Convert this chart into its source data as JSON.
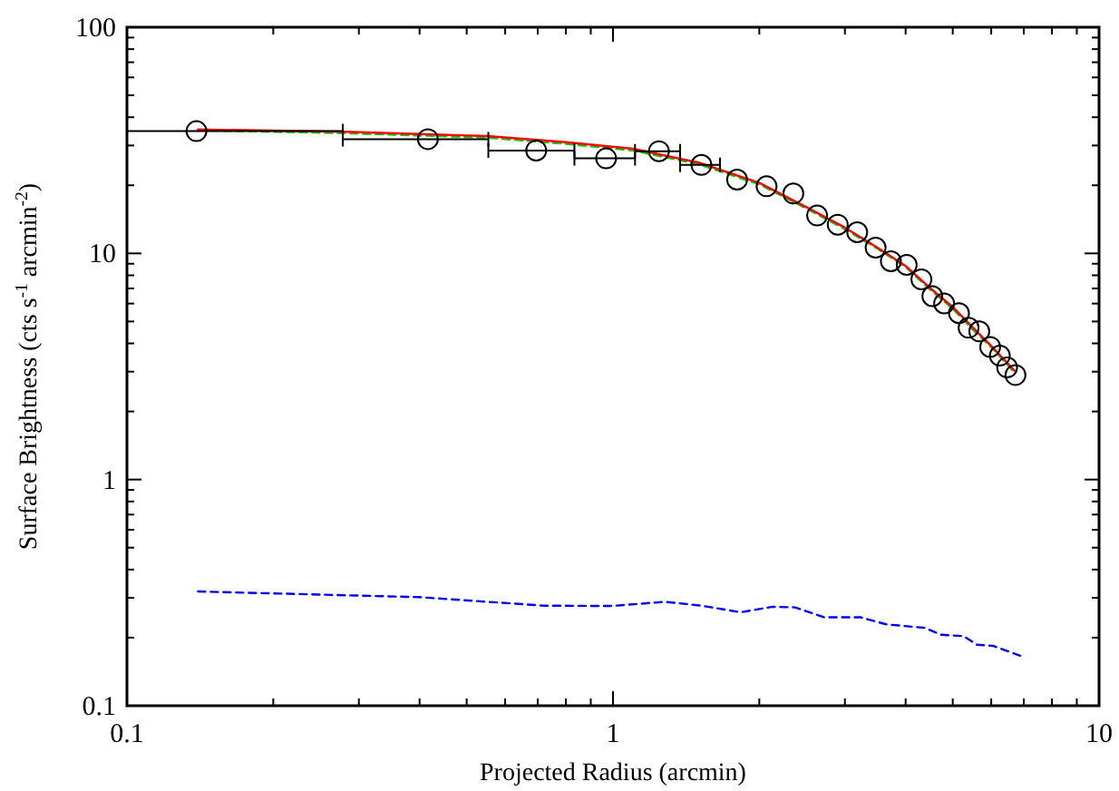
{
  "chart_data": {
    "type": "scatter",
    "xlabel": "Projected Radius (arcmin)",
    "ylabel": "Surface Brightness (cts s$^{-1}$ arcmin$^{-2}$)",
    "log": "xy",
    "grid": false,
    "xlim": [
      0.1,
      10
    ],
    "ylim": [
      0.1,
      100
    ],
    "xticks": [
      0.1,
      {
        "value": 0.2,
        "label": null
      },
      {
        "value": 0.3,
        "label": null
      },
      {
        "value": 0.4,
        "label": null
      },
      {
        "value": 0.5,
        "label": null
      },
      {
        "value": 0.6,
        "label": null
      },
      {
        "value": 0.7,
        "label": null
      },
      {
        "value": 0.8,
        "label": null
      },
      {
        "value": 0.9,
        "label": null
      },
      1,
      {
        "value": 2,
        "label": null
      },
      {
        "value": 3,
        "label": null
      },
      {
        "value": 4,
        "label": null
      },
      {
        "value": 5,
        "label": null
      },
      {
        "value": 6,
        "label": null
      },
      {
        "value": 7,
        "label": null
      },
      {
        "value": 8,
        "label": null
      },
      {
        "value": 9,
        "label": null
      },
      10
    ],
    "yticks": [
      0.1,
      {
        "value": 0.2,
        "label": null
      },
      {
        "value": 0.3,
        "label": null
      },
      {
        "value": 0.4,
        "label": null
      },
      {
        "value": 0.5,
        "label": null
      },
      {
        "value": 0.6,
        "label": null
      },
      {
        "value": 0.7,
        "label": null
      },
      {
        "value": 0.8,
        "label": null
      },
      {
        "value": 0.9,
        "label": null
      },
      1,
      {
        "value": 2,
        "label": null
      },
      {
        "value": 3,
        "label": null
      },
      {
        "value": 4,
        "label": null
      },
      {
        "value": 5,
        "label": null
      },
      {
        "value": 6,
        "label": null
      },
      {
        "value": 7,
        "label": null
      },
      {
        "value": 8,
        "label": null
      },
      {
        "value": 9,
        "label": null
      },
      10,
      {
        "value": 20,
        "label": null
      },
      {
        "value": 30,
        "label": null
      },
      {
        "value": 40,
        "label": null
      },
      {
        "value": 50,
        "label": null
      },
      {
        "value": 60,
        "label": null
      },
      {
        "value": 70,
        "label": null
      },
      {
        "value": 80,
        "label": null
      },
      {
        "value": 90,
        "label": null
      },
      100
    ],
    "series": [
      {
        "type": "line",
        "color": "#00cc00",
        "line_style": "dashed",
        "x": [
          0.14,
          0.28,
          0.55,
          0.8,
          1.1,
          1.5,
          2.0,
          2.5,
          3.0,
          3.5,
          4.0,
          4.5,
          5.0,
          5.5,
          6.0,
          6.73
        ],
        "values": [
          35.0,
          34.0,
          32.5,
          30.5,
          28.5,
          24.8,
          20.2,
          15.8,
          12.8,
          10.5,
          8.7,
          6.9,
          5.7,
          4.6,
          3.85,
          2.95
        ]
      },
      {
        "type": "line",
        "color": "#ff0000",
        "line_style": "solid",
        "x": [
          0.14,
          0.28,
          0.55,
          0.8,
          1.1,
          1.5,
          2.0,
          2.5,
          3.0,
          3.5,
          4.0,
          4.5,
          5.0,
          5.5,
          6.0,
          6.73
        ],
        "values": [
          35.3,
          34.5,
          33,
          31,
          29,
          25.2,
          20.5,
          16,
          13,
          10.6,
          8.8,
          7.0,
          5.8,
          4.7,
          3.9,
          3.0
        ]
      },
      {
        "type": "line",
        "color": "#0000ff",
        "line_style": "dashed",
        "x": [
          0.14,
          0.4,
          0.72,
          0.99,
          1.28,
          1.52,
          1.83,
          2.13,
          2.37,
          2.72,
          3.23,
          3.65,
          4.38,
          4.73,
          5.27,
          5.61,
          6.05,
          6.9
        ],
        "values": [
          0.32,
          0.302,
          0.277,
          0.276,
          0.288,
          0.277,
          0.259,
          0.274,
          0.272,
          0.246,
          0.246,
          0.229,
          0.221,
          0.206,
          0.203,
          0.186,
          0.184,
          0.166
        ]
      },
      {
        "color": "#000000",
        "marker": "circle",
        "x": [
          0.139,
          0.416,
          0.695,
          0.968,
          1.243,
          1.52,
          1.8,
          2.07,
          2.35,
          2.63,
          2.9,
          3.18,
          3.47,
          3.73,
          4.02,
          4.31,
          4.54,
          4.8,
          5.15,
          5.39,
          5.67,
          5.97,
          6.25,
          6.47,
          6.73
        ],
        "values": [
          34.7,
          32.0,
          28.5,
          26.3,
          28.3,
          24.6,
          21.2,
          19.8,
          18.4,
          14.7,
          13.4,
          12.4,
          10.6,
          9.24,
          8.9,
          7.68,
          6.47,
          6.01,
          5.44,
          4.69,
          4.52,
          3.86,
          3.53,
          3.13,
          2.9
        ],
        "xerrors": [
          [
            0.1,
            0.278
          ],
          [
            0.278,
            0.554
          ],
          [
            0.554,
            0.833
          ],
          [
            0.833,
            1.11
          ],
          [
            1.11,
            1.374
          ],
          [
            1.374,
            1.66
          ],
          null,
          null,
          null,
          null,
          null,
          null,
          null,
          null,
          null,
          null,
          null,
          null,
          null,
          null,
          null,
          null,
          null,
          null,
          null
        ]
      }
    ]
  }
}
